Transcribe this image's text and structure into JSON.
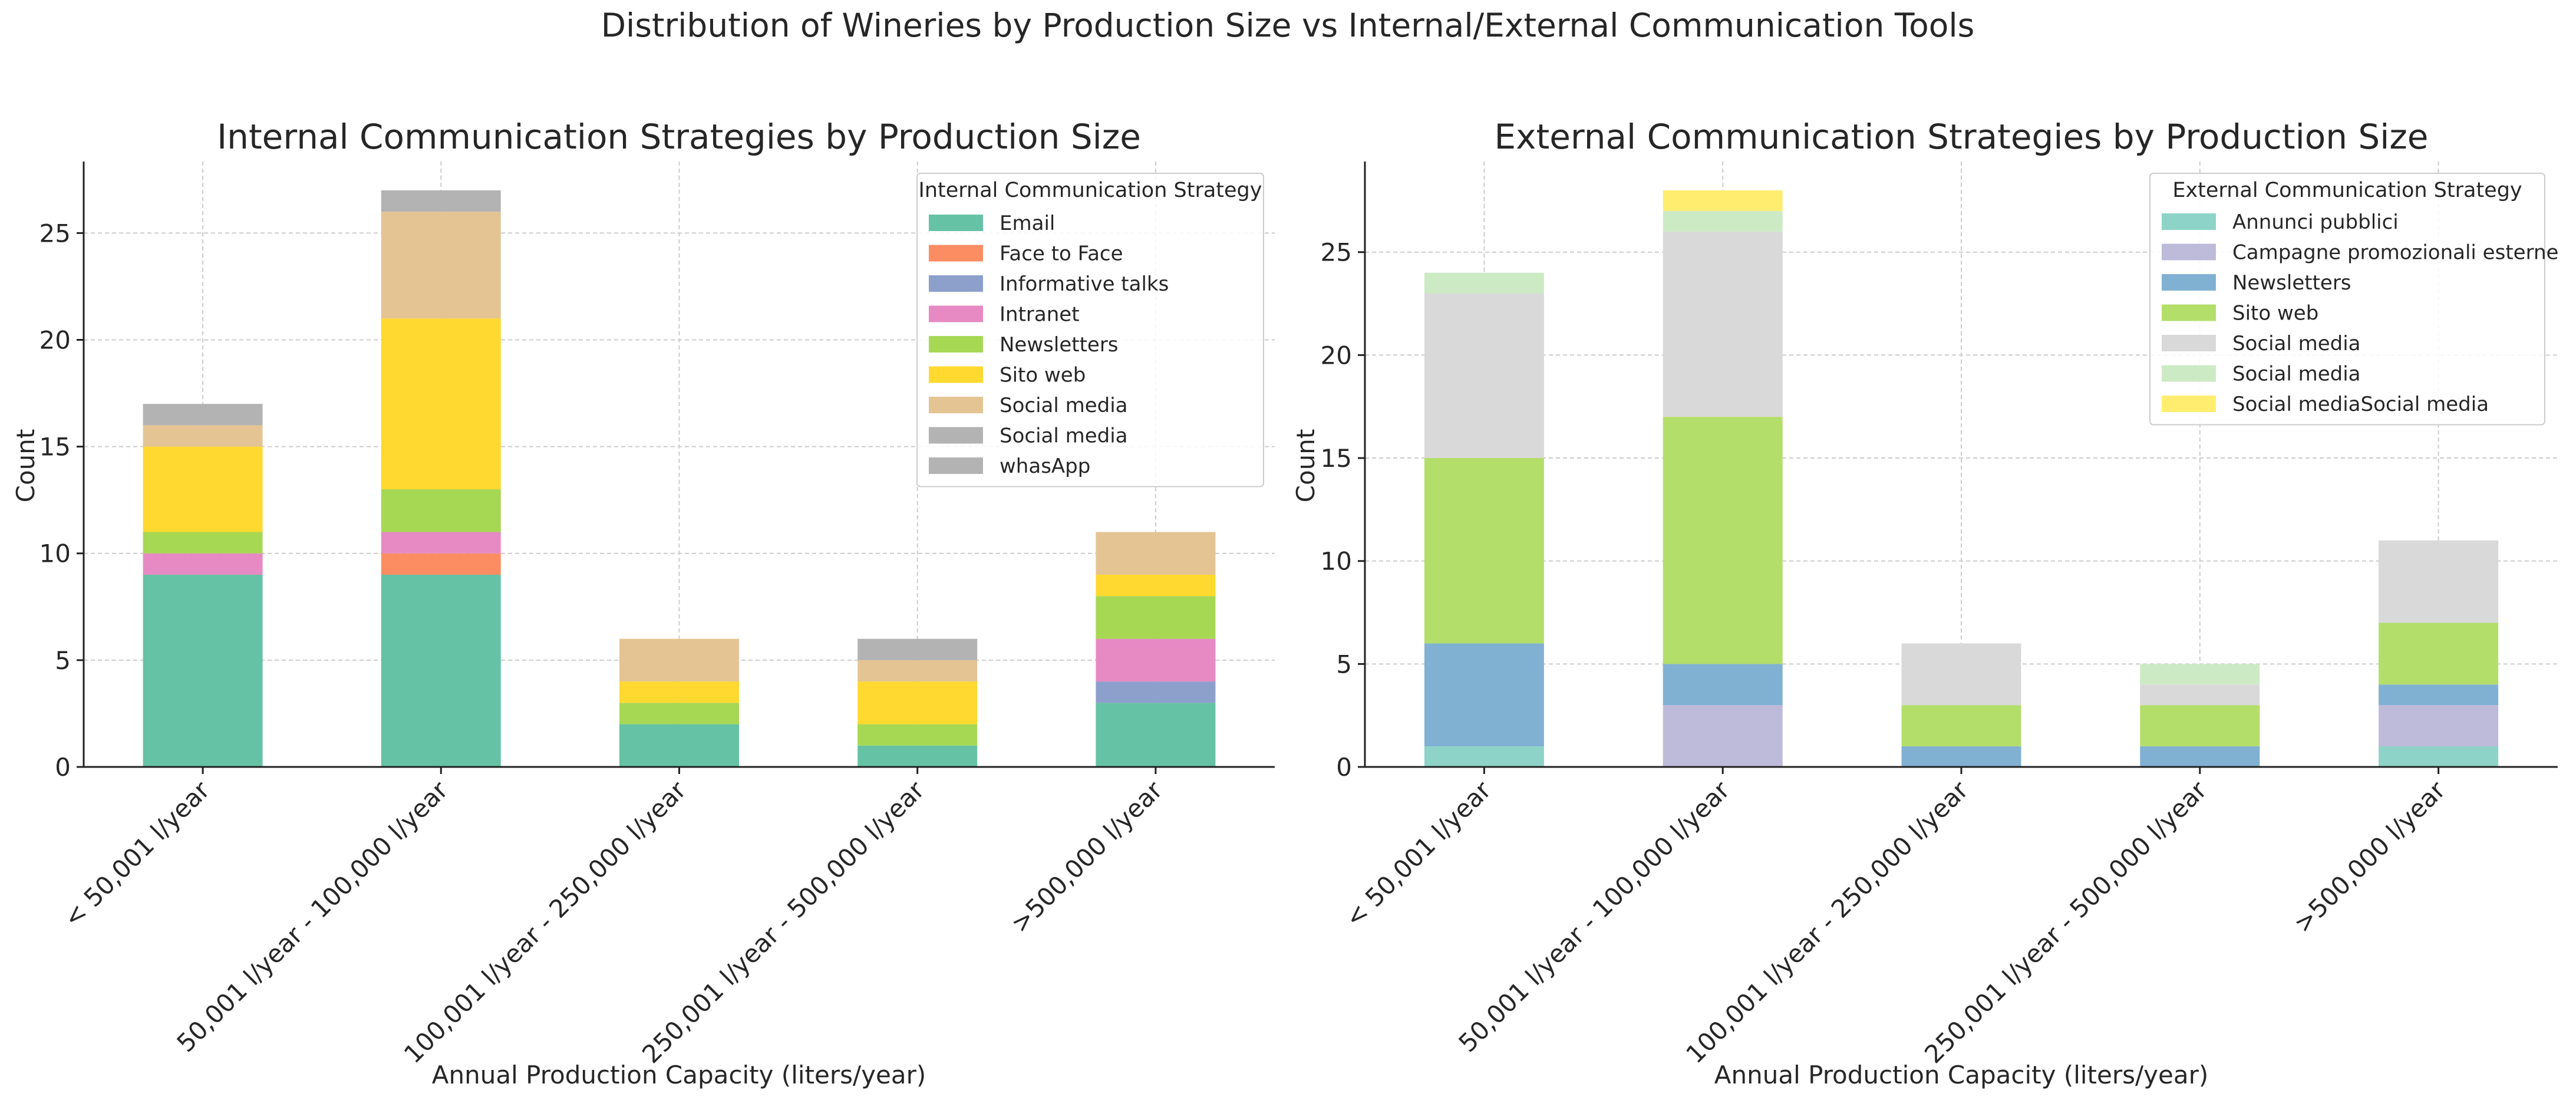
{
  "figure_title": "Distribution of Wineries by Production Size vs Internal/External Communication Tools",
  "chart_data": [
    {
      "type": "bar",
      "stacked": true,
      "title": "Internal Communication Strategies by Production Size",
      "xlabel": "Annual Production Capacity (liters/year)",
      "ylabel": "Count",
      "ylim": [
        0,
        28.35
      ],
      "yticks": [
        0,
        5,
        10,
        15,
        20,
        25
      ],
      "categories": [
        "< 50,001 l/year",
        "50,001 l/year - 100,000 l/year",
        "100,001 l/year - 250,000 l/year",
        "250,001 l/year - 500,000 l/year",
        ">500,000 l/year"
      ],
      "legend_title": "Internal Communication Strategy",
      "legend_position": "top-right",
      "grid": true,
      "series": [
        {
          "name": "Email",
          "color": "#66c2a5",
          "values": [
            9,
            9,
            2,
            1,
            3
          ]
        },
        {
          "name": "Face to Face",
          "color": "#fc8d62",
          "values": [
            0,
            1,
            0,
            0,
            0
          ]
        },
        {
          "name": "Informative talks",
          "color": "#8da0cb",
          "values": [
            0,
            0,
            0,
            0,
            1
          ]
        },
        {
          "name": "Intranet",
          "color": "#e78ac3",
          "values": [
            1,
            1,
            0,
            0,
            2
          ]
        },
        {
          "name": "Newsletters",
          "color": "#a6d854",
          "values": [
            1,
            2,
            1,
            1,
            2
          ]
        },
        {
          "name": "Sito web",
          "color": "#ffd92f",
          "values": [
            4,
            8,
            1,
            2,
            1
          ]
        },
        {
          "name": "Social media",
          "color": "#e5c494",
          "values": [
            1,
            5,
            2,
            1,
            2
          ]
        },
        {
          "name": "Social media",
          "color": "#b3b3b3",
          "values": [
            1,
            1,
            0,
            1,
            0
          ]
        },
        {
          "name": "whasApp",
          "color": "#b3b3b3",
          "values": [
            0,
            0,
            0,
            0,
            0
          ]
        }
      ]
    },
    {
      "type": "bar",
      "stacked": true,
      "title": "External Communication Strategies by Production Size",
      "xlabel": "Annual Production Capacity (liters/year)",
      "ylabel": "Count",
      "ylim": [
        0,
        29.4
      ],
      "yticks": [
        0,
        5,
        10,
        15,
        20,
        25
      ],
      "categories": [
        "< 50,001 l/year",
        "50,001 l/year - 100,000 l/year",
        "100,001 l/year - 250,000 l/year",
        "250,001 l/year - 500,000 l/year",
        ">500,000 l/year"
      ],
      "legend_title": "External Communication Strategy",
      "legend_position": "top-right",
      "grid": true,
      "series": [
        {
          "name": "Annunci pubblici",
          "color": "#8dd3c7",
          "values": [
            1,
            0,
            0,
            0,
            1
          ]
        },
        {
          "name": "Campagne promozionali esterne",
          "color": "#bebada",
          "values": [
            0,
            3,
            0,
            0,
            2
          ]
        },
        {
          "name": "Newsletters",
          "color": "#80b1d3",
          "values": [
            5,
            2,
            1,
            1,
            1
          ]
        },
        {
          "name": "Sito web",
          "color": "#b3de69",
          "values": [
            9,
            12,
            2,
            2,
            3
          ]
        },
        {
          "name": "Social media",
          "color": "#d9d9d9",
          "values": [
            8,
            9,
            3,
            1,
            4
          ]
        },
        {
          "name": "Social media",
          "color": "#ccebc5",
          "values": [
            1,
            1,
            0,
            1,
            0
          ]
        },
        {
          "name": "Social mediaSocial media",
          "color": "#ffed6f",
          "values": [
            0,
            1,
            0,
            0,
            0
          ]
        }
      ]
    }
  ]
}
